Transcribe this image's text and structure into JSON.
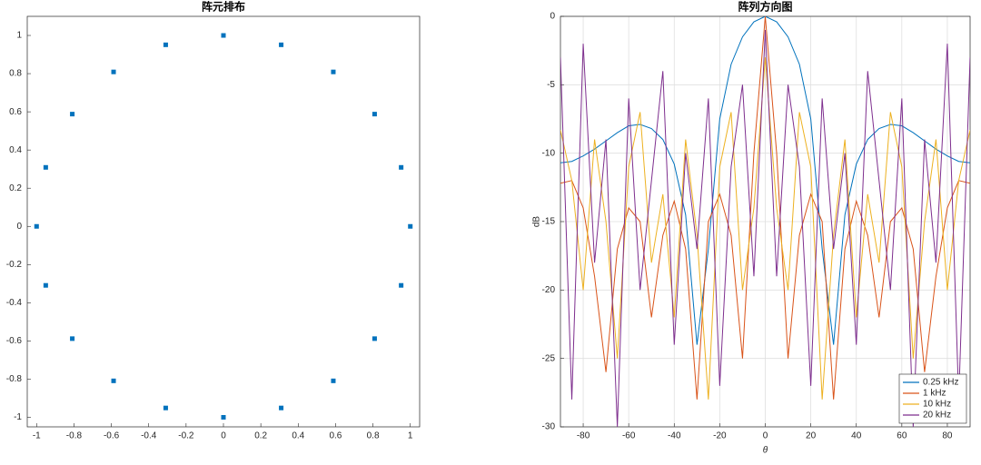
{
  "chart_data": [
    {
      "type": "scatter",
      "title": "阵元排布",
      "x": [
        1,
        0.951,
        0.809,
        0.588,
        0.309,
        0,
        -0.309,
        -0.588,
        -0.809,
        -0.951,
        -1,
        -0.951,
        -0.809,
        -0.588,
        -0.309,
        0,
        0.309,
        0.588,
        0.809,
        0.951
      ],
      "values": [
        0,
        0.309,
        0.588,
        0.809,
        0.951,
        1,
        0.951,
        0.809,
        0.588,
        0.309,
        0,
        -0.309,
        -0.588,
        -0.809,
        -0.951,
        -1,
        -0.951,
        -0.809,
        -0.588,
        -0.309
      ],
      "color": "#0072bd",
      "xlim": [
        -1.05,
        1.05
      ],
      "ylim": [
        -1.05,
        1.1
      ],
      "xticks": [
        -1,
        -0.8,
        -0.6,
        -0.4,
        -0.2,
        0,
        0.2,
        0.4,
        0.6,
        0.8,
        1
      ],
      "yticks": [
        -1,
        -0.8,
        -0.6,
        -0.4,
        -0.2,
        0,
        0.2,
        0.4,
        0.6,
        0.8,
        1
      ],
      "grid": false
    },
    {
      "type": "line",
      "title": "阵列方向图",
      "xlabel": "θ",
      "ylabel": "dB",
      "x": [
        -90,
        -85,
        -80,
        -75,
        -70,
        -65,
        -60,
        -55,
        -50,
        -45,
        -40,
        -35,
        -30,
        -25,
        -20,
        -15,
        -10,
        -5,
        0,
        5,
        10,
        15,
        20,
        25,
        30,
        35,
        40,
        45,
        50,
        55,
        60,
        65,
        70,
        75,
        80,
        85,
        90
      ],
      "series": [
        {
          "name": "0.25 kHz",
          "color": "#0072bd",
          "values": [
            -10.7,
            -10.6,
            -10.2,
            -9.7,
            -9.1,
            -8.5,
            -8.0,
            -7.9,
            -8.2,
            -9.0,
            -10.8,
            -14.5,
            -24,
            -17,
            -7.5,
            -3.5,
            -1.5,
            -0.4,
            0,
            -0.4,
            -1.5,
            -3.5,
            -7.5,
            -17,
            -24,
            -14.5,
            -10.8,
            -9.0,
            -8.2,
            -7.9,
            -8.0,
            -8.5,
            -9.1,
            -9.7,
            -10.2,
            -10.6,
            -10.7
          ]
        },
        {
          "name": "1 kHz",
          "color": "#d95319",
          "values": [
            -12.2,
            -12.0,
            -14,
            -19,
            -26,
            -17,
            -14,
            -15,
            -22,
            -16,
            -13.5,
            -17,
            -28,
            -15,
            -13,
            -16,
            -25,
            -10,
            0,
            -10,
            -25,
            -16,
            -13,
            -15,
            -28,
            -17,
            -13.5,
            -16,
            -22,
            -15,
            -14,
            -17,
            -26,
            -19,
            -14,
            -12.0,
            -12.2
          ]
        },
        {
          "name": "10 kHz",
          "color": "#edb120",
          "values": [
            -8.3,
            -12,
            -20,
            -9,
            -15,
            -25,
            -11,
            -7,
            -18,
            -13,
            -22,
            -9,
            -16,
            -28,
            -11,
            -7,
            -20,
            -14,
            -3,
            -14,
            -20,
            -7,
            -11,
            -28,
            -16,
            -9,
            -22,
            -13,
            -18,
            -7,
            -11,
            -25,
            -15,
            -9,
            -20,
            -12,
            -8.3
          ]
        },
        {
          "name": "20 kHz",
          "color": "#7e2f8e",
          "values": [
            -3,
            -28,
            -2,
            -18,
            -9,
            -30,
            -6,
            -20,
            -12,
            -4,
            -24,
            -10,
            -17,
            -6,
            -27,
            -11,
            -5,
            -19,
            -1,
            -19,
            -5,
            -11,
            -27,
            -6,
            -17,
            -10,
            -24,
            -4,
            -12,
            -20,
            -6,
            -30,
            -9,
            -18,
            -2,
            -28,
            -3
          ]
        }
      ],
      "xlim": [
        -90,
        90
      ],
      "ylim": [
        -30,
        0
      ],
      "xticks": [
        -80,
        -60,
        -40,
        -20,
        0,
        20,
        40,
        60,
        80
      ],
      "yticks": [
        -30,
        -25,
        -20,
        -15,
        -10,
        -5,
        0
      ],
      "grid": true,
      "legend": "lower right"
    }
  ]
}
